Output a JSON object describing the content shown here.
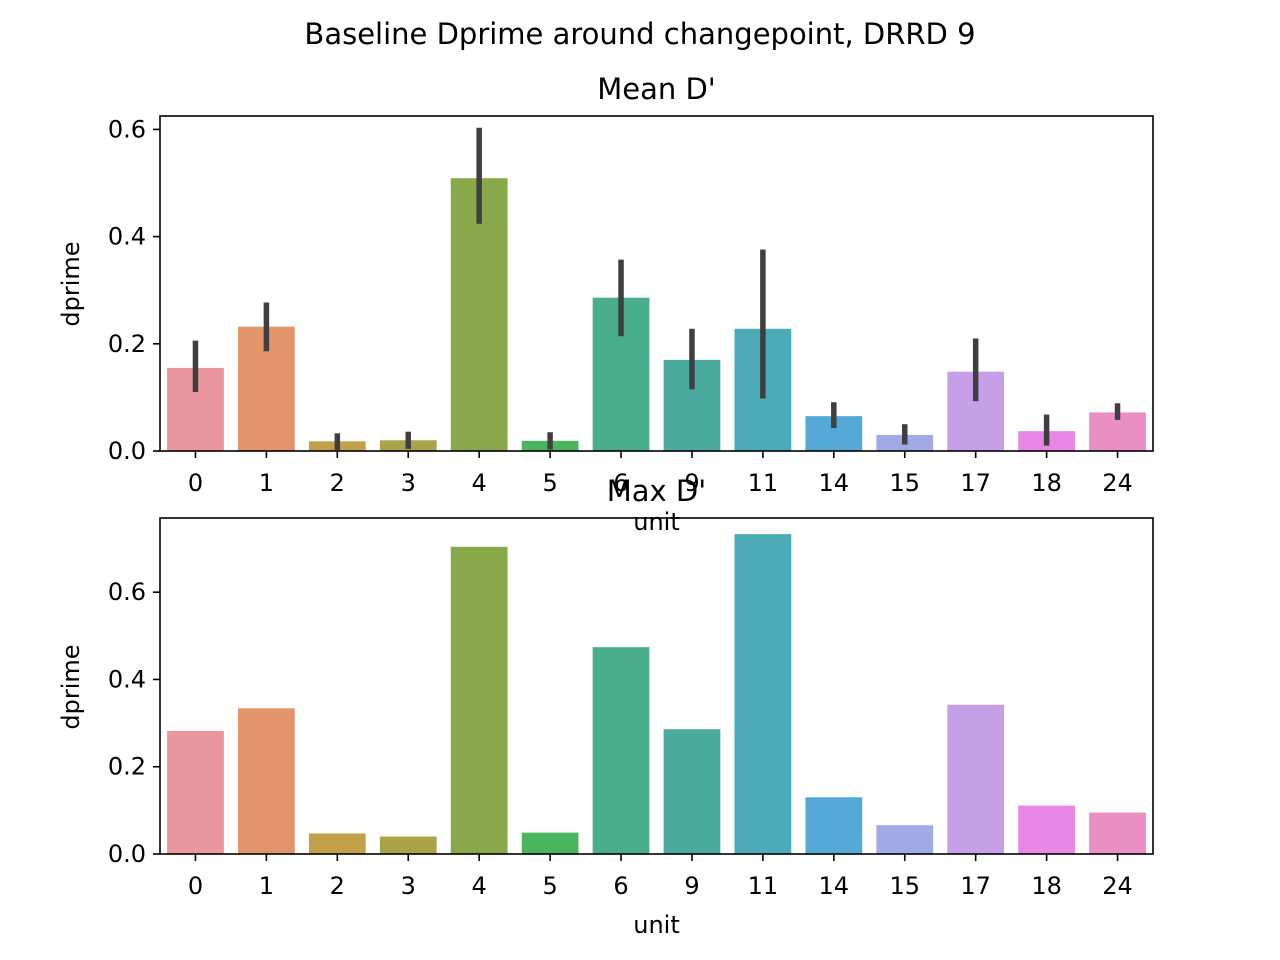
{
  "suptitle": "Baseline Dprime around changepoint, DRRD 9",
  "chart_data": [
    {
      "type": "bar",
      "title": "Mean D'",
      "xlabel": "unit",
      "ylabel": "dprime",
      "categories": [
        "0",
        "1",
        "2",
        "3",
        "4",
        "5",
        "6",
        "9",
        "11",
        "14",
        "15",
        "17",
        "18",
        "24"
      ],
      "values": [
        0.155,
        0.232,
        0.018,
        0.02,
        0.509,
        0.019,
        0.286,
        0.17,
        0.228,
        0.065,
        0.03,
        0.148,
        0.037,
        0.072
      ],
      "error_low": [
        0.11,
        0.186,
        0.002,
        0.004,
        0.424,
        0.003,
        0.214,
        0.115,
        0.098,
        0.043,
        0.012,
        0.093,
        0.01,
        0.058
      ],
      "error_high": [
        0.206,
        0.277,
        0.033,
        0.036,
        0.603,
        0.035,
        0.357,
        0.228,
        0.376,
        0.091,
        0.05,
        0.21,
        0.068,
        0.089
      ],
      "ylim": [
        0,
        0.625
      ],
      "yticks": [
        "0.0",
        "0.2",
        "0.4",
        "0.6"
      ],
      "colors": [
        "#e9969f",
        "#e4946b",
        "#c1a048",
        "#a9a34a",
        "#89a84a",
        "#4ab55e",
        "#4aae8d",
        "#4cab9f",
        "#4dabb8",
        "#55a9d6",
        "#a1a9e7",
        "#c79fe6",
        "#e987e6",
        "#e98fc3"
      ]
    },
    {
      "type": "bar",
      "title": "Max D'",
      "xlabel": "unit",
      "ylabel": "dprime",
      "categories": [
        "0",
        "1",
        "2",
        "3",
        "4",
        "5",
        "6",
        "9",
        "11",
        "14",
        "15",
        "17",
        "18",
        "24"
      ],
      "values": [
        0.282,
        0.334,
        0.047,
        0.04,
        0.704,
        0.049,
        0.474,
        0.286,
        0.733,
        0.13,
        0.066,
        0.342,
        0.111,
        0.095
      ],
      "ylim": [
        0,
        0.77
      ],
      "yticks": [
        "0.0",
        "0.2",
        "0.4",
        "0.6"
      ],
      "colors": [
        "#e9969f",
        "#e4946b",
        "#c1a048",
        "#a9a34a",
        "#89a84a",
        "#4ab55e",
        "#4aae8d",
        "#4cab9f",
        "#4dabb8",
        "#55a9d6",
        "#a1a9e7",
        "#c79fe6",
        "#e987e6",
        "#e98fc3"
      ]
    }
  ]
}
